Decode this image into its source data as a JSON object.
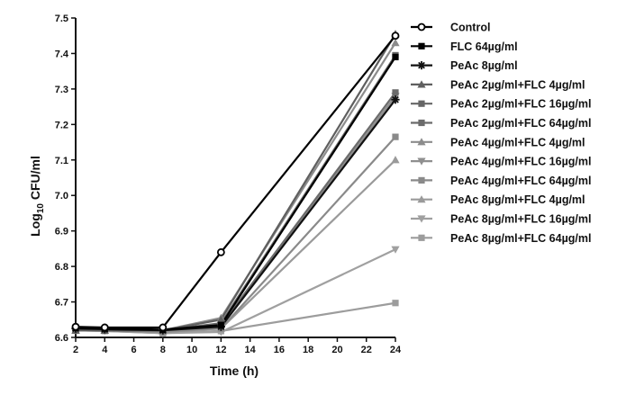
{
  "chart_data": {
    "type": "line",
    "title": "",
    "xlabel": "Time (h)",
    "ylabel": "Log10 CFU/ml",
    "ylabel_main": "Log",
    "ylabel_sub": "10",
    "ylabel_rest": " CFU/ml",
    "xlim": [
      2,
      24
    ],
    "ylim": [
      6.6,
      7.5
    ],
    "xticks": [
      2,
      4,
      6,
      8,
      10,
      12,
      14,
      16,
      18,
      20,
      22,
      24
    ],
    "yticks": [
      6.6,
      6.7,
      6.8,
      6.9,
      7.0,
      7.1,
      7.2,
      7.3,
      7.4,
      7.5
    ],
    "ytick_labels": [
      "6.6",
      "6.7",
      "6.8",
      "6.9",
      "7.0",
      "7.1",
      "7.2",
      "7.3",
      "7.4",
      "7.5"
    ],
    "grid": false,
    "legend_position": "right",
    "x": [
      2,
      4,
      8,
      12,
      24
    ],
    "series": [
      {
        "name": "Control",
        "color": "#000000",
        "marker": "circle-open",
        "values": [
          6.63,
          6.628,
          6.628,
          6.84,
          7.45
        ]
      },
      {
        "name": "FLC 64µg/ml",
        "color": "#000000",
        "marker": "square",
        "values": [
          6.627,
          6.625,
          6.622,
          6.635,
          7.39
        ]
      },
      {
        "name": "PeAc 8µg/ml",
        "color": "#111111",
        "marker": "asterisk",
        "values": [
          6.625,
          6.623,
          6.62,
          6.63,
          7.27
        ]
      },
      {
        "name": "PeAc 2µg/ml+FLC 4µg/ml",
        "color": "#5f5f5f",
        "marker": "triangle-up",
        "values": [
          6.62,
          6.62,
          6.62,
          6.65,
          7.455
        ]
      },
      {
        "name": "PeAc 2µg/ml+FLC 16µg/ml",
        "color": "#666666",
        "marker": "square",
        "values": [
          6.62,
          6.62,
          6.62,
          6.64,
          7.395
        ]
      },
      {
        "name": "PeAc 2µg/ml+FLC 64µg/ml",
        "color": "#6b6b6b",
        "marker": "square",
        "values": [
          6.62,
          6.62,
          6.62,
          6.635,
          7.29
        ]
      },
      {
        "name": "PeAc 4µg/ml+FLC 4µg/ml",
        "color": "#8c8c8c",
        "marker": "triangle-up",
        "values": [
          6.62,
          6.62,
          6.62,
          6.655,
          7.43
        ]
      },
      {
        "name": "PeAc 4µg/ml+FLC 16µg/ml",
        "color": "#8f8f8f",
        "marker": "triangle-down",
        "values": [
          6.62,
          6.62,
          6.615,
          6.63,
          7.28
        ]
      },
      {
        "name": "PeAc 4µg/ml+FLC 64µg/ml",
        "color": "#8a8a8a",
        "marker": "square",
        "values": [
          6.62,
          6.62,
          6.615,
          6.625,
          7.165
        ]
      },
      {
        "name": "PeAc 8µg/ml+FLC 4µg/ml",
        "color": "#9a9a9a",
        "marker": "triangle-up",
        "values": [
          6.62,
          6.62,
          6.615,
          6.625,
          7.1
        ]
      },
      {
        "name": "PeAc 8µg/ml+FLC 16µg/ml",
        "color": "#a0a0a0",
        "marker": "triangle-down",
        "values": [
          6.62,
          6.618,
          6.612,
          6.615,
          6.848
        ]
      },
      {
        "name": "PeAc 8µg/ml+FLC 64µg/ml",
        "color": "#9c9c9c",
        "marker": "square",
        "values": [
          6.62,
          6.618,
          6.612,
          6.618,
          6.697
        ]
      }
    ]
  }
}
